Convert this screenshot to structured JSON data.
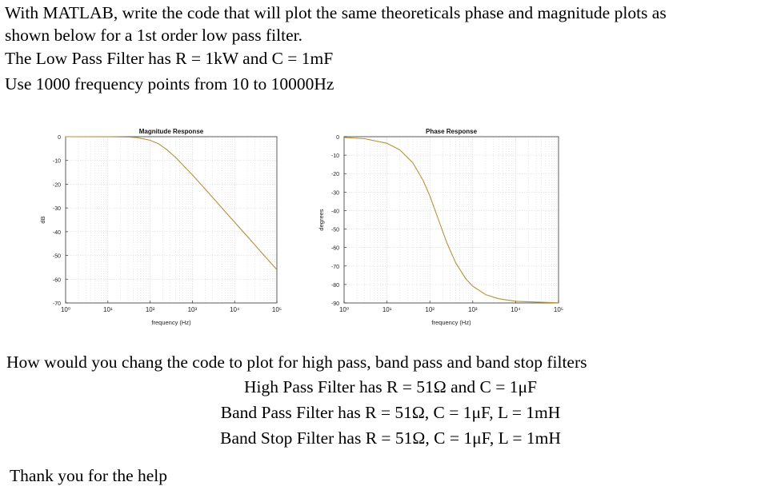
{
  "question": {
    "line1": "With MATLAB, write the code that will plot the same theoreticals phase and magnitude plots as",
    "line2": "shown below for a 1st order low pass filter.",
    "line3": "The Low Pass Filter has R = 1kW and C = 1mF",
    "line4": "Use 1000 frequency points from 10 to 10000Hz"
  },
  "followup": {
    "intro": "How would you chang the code to plot for high pass, band pass and band stop filters",
    "high_pass": "High Pass Filter has R = 51Ω and C = 1μF",
    "band_pass": "Band Pass Filter has R = 51Ω, C = 1μF, L = 1mH",
    "band_stop": "Band Stop Filter has R = 51Ω, C = 1μF, L = 1mH",
    "thanks": "Thank you for the help"
  },
  "line_color": "#b8913a",
  "chart_data": [
    {
      "type": "line",
      "title": "Magnitude Response",
      "xlabel": "frequency (Hz)",
      "ylabel": "dB",
      "x_scale": "log",
      "xlim": [
        1,
        100000
      ],
      "ylim": [
        -70,
        0
      ],
      "x_tick_labels": [
        "10⁰",
        "10¹",
        "10²",
        "10³",
        "10⁴",
        "10⁵"
      ],
      "y_ticks": [
        0,
        -10,
        -20,
        -30,
        -40,
        -50,
        -60,
        -70
      ],
      "grid": true,
      "series": [
        {
          "x": [
            1,
            10,
            30,
            50,
            100,
            159,
            250,
            400,
            700,
            1000,
            2000,
            5000,
            10000,
            20000,
            50000,
            100000
          ],
          "values": [
            0,
            -0.02,
            -0.15,
            -0.4,
            -1.5,
            -3.0,
            -5.5,
            -8.7,
            -13.2,
            -16.1,
            -22.0,
            -30.0,
            -36.0,
            -42.0,
            -50.0,
            -56.0
          ]
        }
      ]
    },
    {
      "type": "line",
      "title": "Phase Response",
      "xlabel": "frequency (Hz)",
      "ylabel": "degrees",
      "x_scale": "log",
      "xlim": [
        1,
        100000
      ],
      "ylim": [
        -90,
        0
      ],
      "x_tick_labels": [
        "10⁰",
        "10¹",
        "10²",
        "10³",
        "10⁴",
        "10⁵"
      ],
      "y_ticks": [
        0,
        -10,
        -20,
        -30,
        -40,
        -50,
        -60,
        -70,
        -80,
        -90
      ],
      "grid": true,
      "series": [
        {
          "x": [
            1,
            3,
            10,
            20,
            40,
            70,
            100,
            159,
            250,
            400,
            700,
            1000,
            2000,
            4000,
            10000,
            100000
          ],
          "values": [
            -0.4,
            -1.1,
            -3.6,
            -7.2,
            -14.1,
            -23.8,
            -32.1,
            -45.0,
            -57.5,
            -68.3,
            -77.2,
            -80.9,
            -85.5,
            -87.7,
            -89.1,
            -89.9
          ]
        }
      ]
    }
  ]
}
